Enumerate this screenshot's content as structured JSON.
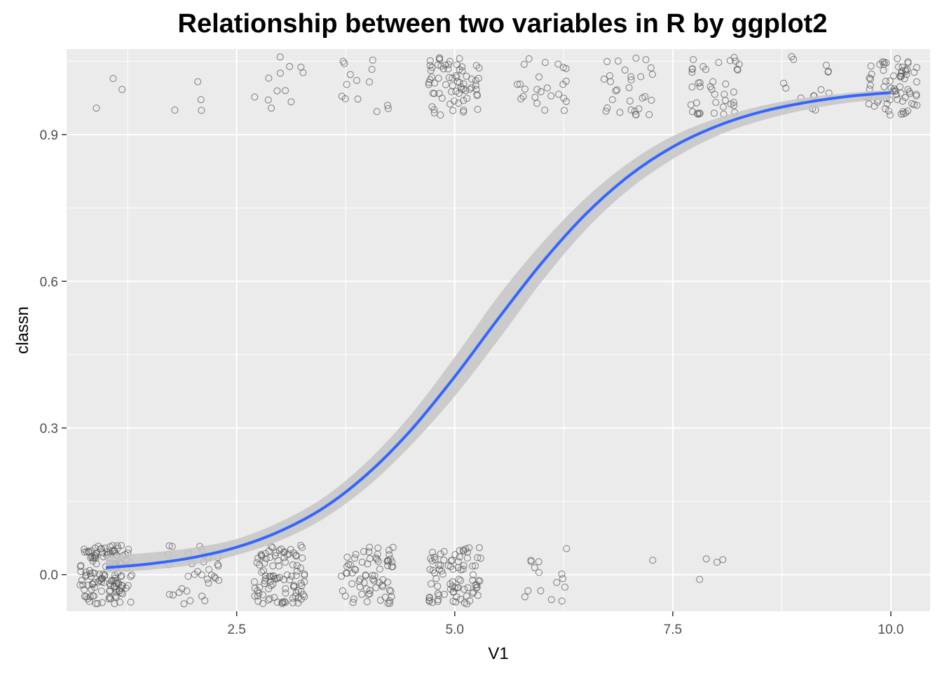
{
  "chart_data": {
    "type": "scatter",
    "title": "Relationship between two variables in R by ggplot2",
    "xlabel": "V1",
    "ylabel": "classn",
    "xlim": [
      0.55,
      10.45
    ],
    "ylim": [
      -0.075,
      1.075
    ],
    "x_ticks": [
      2.5,
      5.0,
      7.5,
      10.0
    ],
    "x_tick_labels": [
      "2.5",
      "5.0",
      "7.5",
      "10.0"
    ],
    "y_ticks": [
      0.0,
      0.3,
      0.6,
      0.9
    ],
    "y_tick_labels": [
      "0.0",
      "0.3",
      "0.6",
      "0.9"
    ],
    "grid": true,
    "legend": "none",
    "jitter_width": 0.3,
    "jitter_height": 0.06,
    "points_by_x": [
      {
        "x": 1,
        "count_y0": 140,
        "count_y1": 3
      },
      {
        "x": 2,
        "count_y0": 35,
        "count_y1": 4
      },
      {
        "x": 3,
        "count_y0": 100,
        "count_y1": 12
      },
      {
        "x": 4,
        "count_y0": 70,
        "count_y1": 14
      },
      {
        "x": 5,
        "count_y0": 85,
        "count_y1": 70
      },
      {
        "x": 6,
        "count_y0": 15,
        "count_y1": 25
      },
      {
        "x": 7,
        "count_y0": 1,
        "count_y1": 30
      },
      {
        "x": 8,
        "count_y0": 4,
        "count_y1": 40
      },
      {
        "x": 9,
        "count_y0": 0,
        "count_y1": 15
      },
      {
        "x": 10,
        "count_y0": 0,
        "count_y1": 70
      }
    ],
    "fit_curve": {
      "method": "logistic",
      "x": [
        1,
        1.5,
        2,
        2.5,
        3,
        3.5,
        4,
        4.5,
        5,
        5.5,
        6,
        6.5,
        7,
        7.5,
        8,
        8.5,
        9,
        9.5,
        10
      ],
      "y": [
        0.014,
        0.022,
        0.035,
        0.056,
        0.089,
        0.137,
        0.206,
        0.296,
        0.405,
        0.524,
        0.638,
        0.737,
        0.816,
        0.875,
        0.917,
        0.946,
        0.965,
        0.978,
        0.986
      ],
      "se_lower": [
        0.004,
        0.01,
        0.02,
        0.04,
        0.07,
        0.115,
        0.18,
        0.265,
        0.365,
        0.48,
        0.6,
        0.705,
        0.788,
        0.85,
        0.897,
        0.928,
        0.95,
        0.965,
        0.973
      ],
      "se_upper": [
        0.038,
        0.045,
        0.055,
        0.073,
        0.108,
        0.158,
        0.232,
        0.328,
        0.445,
        0.57,
        0.678,
        0.77,
        0.843,
        0.897,
        0.933,
        0.958,
        0.975,
        0.985,
        0.992
      ]
    },
    "colors": {
      "panel_background": "#ebebeb",
      "grid": "#ffffff",
      "point_stroke": "#555555",
      "line": "#3366ff",
      "ribbon": "#c6c6c6"
    }
  }
}
